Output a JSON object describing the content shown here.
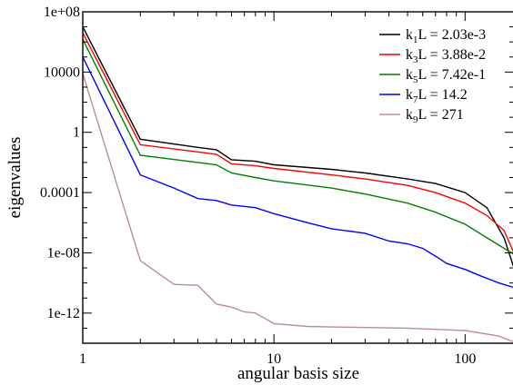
{
  "chart_data": {
    "type": "line",
    "xlabel": "angular basis size",
    "ylabel": "eigenvalues",
    "xscale": "log",
    "yscale": "log",
    "xlim": [
      1,
      180
    ],
    "ylim": [
      1e-14,
      100000000.0
    ],
    "x_ticks": [
      {
        "value": 1,
        "label": "1"
      },
      {
        "value": 10,
        "label": "10"
      },
      {
        "value": 100,
        "label": "100"
      }
    ],
    "y_ticks": [
      {
        "value": 100000000.0,
        "label": "1e+08"
      },
      {
        "value": 10000.0,
        "label": "10000"
      },
      {
        "value": 1,
        "label": "1"
      },
      {
        "value": 0.0001,
        "label": "0.0001"
      },
      {
        "value": 1e-08,
        "label": "1e-08"
      },
      {
        "value": 1e-12,
        "label": "1e-12"
      }
    ],
    "legend_position": "top-right",
    "series": [
      {
        "legend_pre": "k",
        "legend_sub": "1",
        "legend_post": "L = 2.03e-3",
        "color": "#000000",
        "x": [
          1,
          2,
          4,
          5,
          6,
          8,
          10,
          20,
          30,
          50,
          70,
          100,
          130,
          160,
          180
        ],
        "y": [
          10000000.0,
          0.35,
          0.1,
          0.07,
          0.015,
          0.012,
          0.007,
          0.0035,
          0.002,
          0.0008,
          0.0004,
          0.0001,
          1e-05,
          1e-07,
          1e-09
        ]
      },
      {
        "legend_pre": "k",
        "legend_sub": "3",
        "legend_post": "L = 3.88e-2",
        "color": "#ff0000",
        "x": [
          1,
          2,
          4,
          5,
          6,
          8,
          10,
          20,
          30,
          50,
          70,
          100,
          130,
          160,
          180
        ],
        "y": [
          4000000.0,
          0.15,
          0.05,
          0.035,
          0.008,
          0.006,
          0.004,
          0.0015,
          0.0008,
          0.0003,
          0.0001,
          2e-05,
          3e-06,
          3e-07,
          1e-08
        ]
      },
      {
        "legend_pre": "k",
        "legend_sub": "5",
        "legend_post": "L = 7.42e-1",
        "color": "#008000",
        "x": [
          1,
          2,
          4,
          5,
          6,
          8,
          10,
          20,
          30,
          50,
          70,
          100,
          130,
          160,
          180
        ],
        "y": [
          1500000.0,
          0.03,
          0.01,
          0.007,
          0.002,
          0.001,
          0.0006,
          0.0002,
          8e-05,
          2e-05,
          5e-06,
          8e-07,
          1e-07,
          2e-08,
          8e-09
        ]
      },
      {
        "legend_pre": "k",
        "legend_sub": "7",
        "legend_post": "L = 14.2",
        "color": "#0000ff",
        "x": [
          1,
          2,
          3,
          4,
          5,
          6,
          8,
          10,
          15,
          20,
          30,
          40,
          50,
          60,
          70,
          80,
          100,
          120,
          150,
          180
        ],
        "y": [
          100000.0,
          0.0015,
          0.0002,
          4e-05,
          3e-05,
          1.5e-05,
          1e-05,
          4e-06,
          1e-06,
          4e-07,
          2e-07,
          6e-08,
          4e-08,
          2e-08,
          6e-09,
          2e-09,
          8e-10,
          3e-10,
          1e-10,
          5e-11
        ]
      },
      {
        "legend_pre": "k",
        "legend_sub": "9",
        "legend_post": "L = 271",
        "color": "#bc8f8f",
        "x": [
          1,
          2,
          3,
          4,
          5,
          6,
          7,
          8,
          10,
          15,
          20,
          50,
          100,
          150,
          180
        ],
        "y": [
          8000.0,
          3e-09,
          8e-11,
          7e-11,
          4e-12,
          2.5e-12,
          1.2e-12,
          1e-12,
          2e-13,
          1.3e-13,
          1.2e-13,
          1e-13,
          7e-14,
          3e-14,
          1.2e-14
        ]
      }
    ]
  }
}
